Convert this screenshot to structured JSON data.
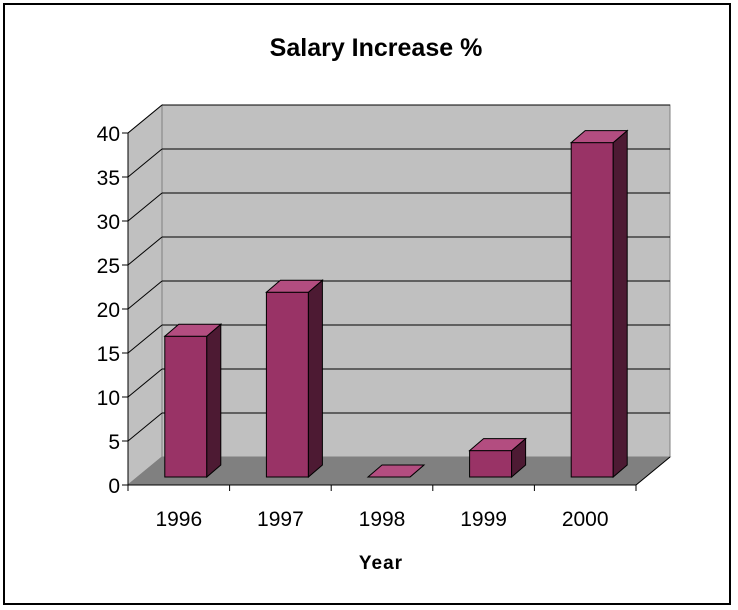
{
  "chart_data": {
    "type": "bar",
    "title": "Salary Increase %",
    "xlabel": "Year",
    "ylabel": "",
    "categories": [
      "1996",
      "1997",
      "1998",
      "1999",
      "2000"
    ],
    "values": [
      16,
      21,
      0,
      3,
      38
    ],
    "ylim": [
      0,
      40
    ],
    "yticks": [
      0,
      5,
      10,
      15,
      20,
      25,
      30,
      35,
      40
    ],
    "grid": true,
    "legend": "none",
    "style": "3d-column"
  },
  "colors": {
    "bar_front": "#993366",
    "bar_top": "#B34D80",
    "bar_side": "#4D1A33",
    "wall": "#C0C0C0",
    "floor": "#808080"
  }
}
